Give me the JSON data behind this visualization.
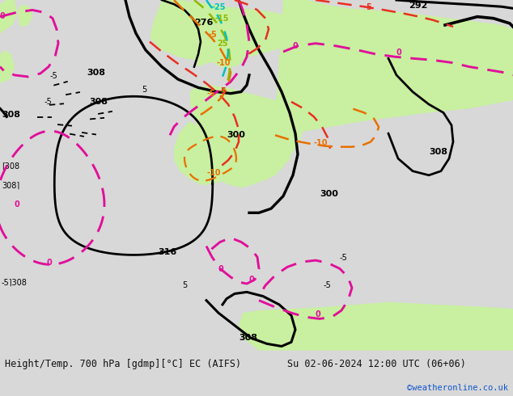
{
  "footer_left": "Height/Temp. 700 hPa [gdmp][°C] EC (AIFS)",
  "footer_right": "Su 02-06-2024 12:00 UTC (06+06)",
  "footer_credit": "©weatheronline.co.uk",
  "bg_land": "#c8f0a0",
  "bg_sea": "#e8e8f0",
  "footer_bg": "#d8d8d8",
  "fig_width": 6.34,
  "fig_height": 4.9,
  "dpi": 100,
  "credit_color": "#1155cc",
  "text_color": "#111111",
  "black_lw": 2.2,
  "dash_lw": 1.8,
  "magenta": "#e0109a",
  "red": "#e83020",
  "orange": "#e87000",
  "yellow_green": "#90b800",
  "cyan": "#00c0c0",
  "green_label": "#70b000"
}
